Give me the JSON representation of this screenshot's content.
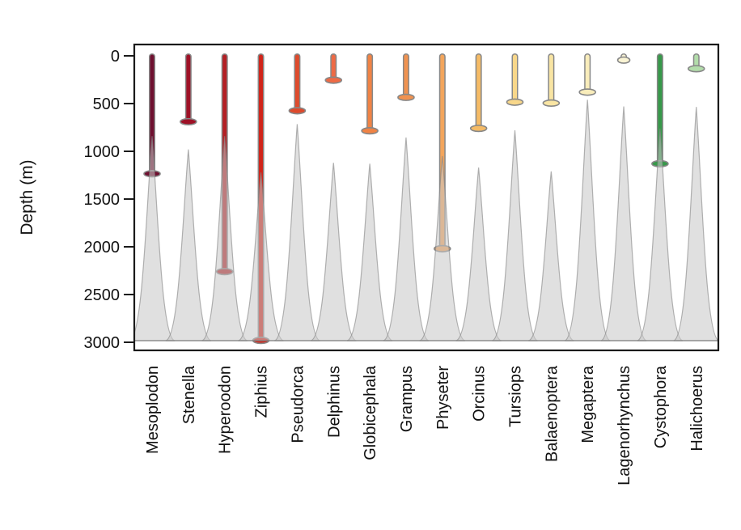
{
  "chart_data": {
    "type": "lollipop-violin",
    "title": "",
    "xlabel": "",
    "ylabel": "Depth (m)",
    "ylim": [
      0,
      3000
    ],
    "y_axis_inverted": true,
    "yticks": [
      0,
      500,
      1000,
      1500,
      2000,
      2500,
      3000
    ],
    "grid": false,
    "legend": "none",
    "panel_border_color": "#1a1a1a",
    "violin_fill": "#c6c6c6",
    "violin_stroke": "#828282",
    "bar_outline_color": "#878787",
    "series": [
      {
        "genus": "Mesoplodon",
        "color": "#6f1030",
        "bar_end_m": 1235,
        "violin_peak_m": 840
      },
      {
        "genus": "Stenella",
        "color": "#9e1126",
        "bar_end_m": 690,
        "violin_peak_m": 980
      },
      {
        "genus": "Hyperoodon",
        "color": "#b32025",
        "bar_end_m": 2260,
        "violin_peak_m": 840
      },
      {
        "genus": "Ziphius",
        "color": "#d1241a",
        "bar_end_m": 2980,
        "violin_peak_m": 1220
      },
      {
        "genus": "Pseudorca",
        "color": "#de4a2c",
        "bar_end_m": 575,
        "violin_peak_m": 715
      },
      {
        "genus": "Delphinus",
        "color": "#ee6a45",
        "bar_end_m": 255,
        "violin_peak_m": 1120
      },
      {
        "genus": "Globicephala",
        "color": "#f08345",
        "bar_end_m": 785,
        "violin_peak_m": 1130
      },
      {
        "genus": "Grampus",
        "color": "#f09250",
        "bar_end_m": 435,
        "violin_peak_m": 855
      },
      {
        "genus": "Physeter",
        "color": "#f3a55c",
        "bar_end_m": 2020,
        "violin_peak_m": 1050
      },
      {
        "genus": "Orcinus",
        "color": "#f5bb66",
        "bar_end_m": 760,
        "violin_peak_m": 1170
      },
      {
        "genus": "Tursiops",
        "color": "#f8d78a",
        "bar_end_m": 485,
        "violin_peak_m": 780
      },
      {
        "genus": "Balaenoptera",
        "color": "#f9e5a3",
        "bar_end_m": 495,
        "violin_peak_m": 1210
      },
      {
        "genus": "Megaptera",
        "color": "#f9edbb",
        "bar_end_m": 380,
        "violin_peak_m": 460
      },
      {
        "genus": "Lagenorhynchus",
        "color": "#faf4d4",
        "bar_end_m": 45,
        "violin_peak_m": 530
      },
      {
        "genus": "Cystophora",
        "color": "#37994a",
        "bar_end_m": 1130,
        "violin_peak_m": 760
      },
      {
        "genus": "Halichoerus",
        "color": "#b2dcaa",
        "bar_end_m": 135,
        "violin_peak_m": 535
      }
    ]
  }
}
